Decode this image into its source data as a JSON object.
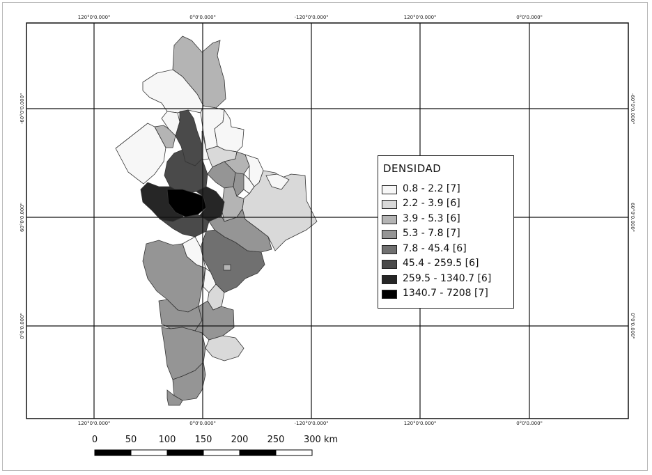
{
  "graticule": {
    "top_labels": [
      "120°0'0.000\"",
      "0°0'0.000\"",
      "-120°0'0.000\"",
      "120°0'0.000\"",
      "0°0'0.000\""
    ],
    "bottom_labels": [
      "120°0'0.000\"",
      "0°0'0.000\"",
      "-120°0'0.000\"",
      "120°0'0.000\"",
      "0°0'0.000\""
    ],
    "left_labels": [
      "-60°0'0.000\"",
      "60°0'0.000\"",
      "0°0'0.000\""
    ],
    "right_labels": [
      "-60°0'0.000\"",
      "60°0'0.000\"",
      "0°0'0.000\""
    ]
  },
  "legend": {
    "title": "DENSIDAD",
    "classes": [
      {
        "label": "0.8 - 2.2 [7]",
        "color": "#f7f7f7"
      },
      {
        "label": "2.2 - 3.9 [6]",
        "color": "#d9d9d9"
      },
      {
        "label": "3.9 - 5.3 [6]",
        "color": "#b4b4b4"
      },
      {
        "label": "5.3 - 7.8 [7]",
        "color": "#959595"
      },
      {
        "label": "7.8 - 45.4 [6]",
        "color": "#707070"
      },
      {
        "label": "45.4 - 259.5 [6]",
        "color": "#4a4a4a"
      },
      {
        "label": "259.5 - 1340.7 [6]",
        "color": "#262626"
      },
      {
        "label": "1340.7 - 7208 [7]",
        "color": "#000000"
      }
    ]
  },
  "scale_bar": {
    "labels": [
      "0",
      "50",
      "100",
      "150",
      "200",
      "250",
      "300 km"
    ]
  }
}
